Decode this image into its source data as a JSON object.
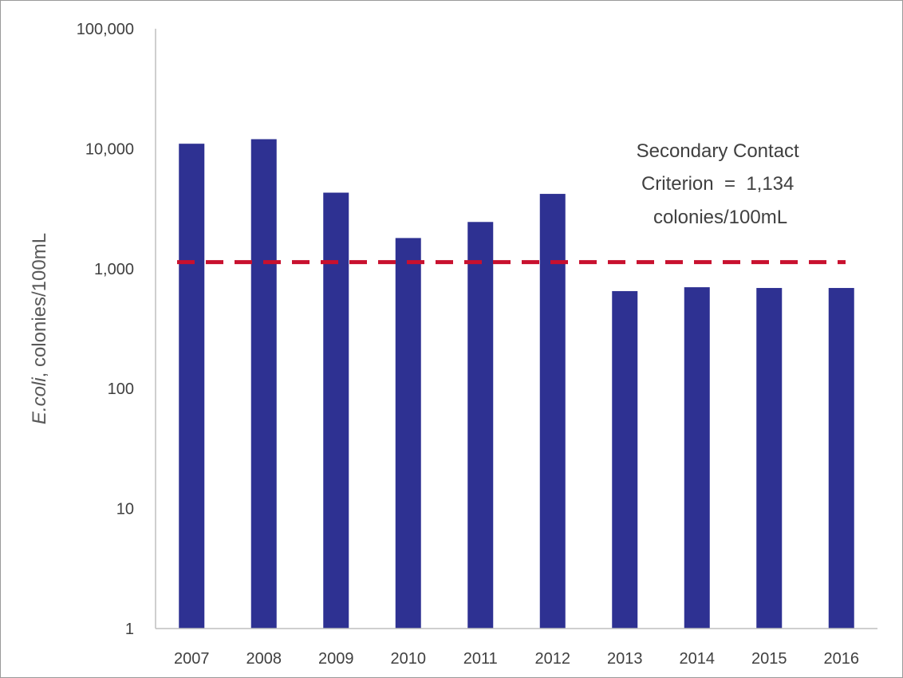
{
  "chart_data": {
    "type": "bar",
    "scale": "log",
    "categories": [
      "2007",
      "2008",
      "2009",
      "2010",
      "2011",
      "2012",
      "2013",
      "2014",
      "2015",
      "2016"
    ],
    "values": [
      11000,
      12000,
      4300,
      1800,
      2450,
      4200,
      650,
      700,
      690,
      690
    ],
    "bar_color": "#2e3192",
    "ylim": [
      1,
      100000
    ],
    "yticks": [
      {
        "value": 1,
        "label": "1"
      },
      {
        "value": 10,
        "label": "10"
      },
      {
        "value": 100,
        "label": "100"
      },
      {
        "value": 1000,
        "label": "1,000"
      },
      {
        "value": 10000,
        "label": "10,000"
      },
      {
        "value": 100000,
        "label": "100,000"
      }
    ],
    "ylabel_italic": "E.coli",
    "ylabel_rest": ", colonies/100mL",
    "xlabel": "",
    "grid": false,
    "criterion": {
      "value": 1134,
      "color": "#c8102e",
      "style": "dashed",
      "annotation": [
        "Secondary Contact",
        "Criterion  =  1,134",
        "colonies/100mL"
      ]
    }
  }
}
